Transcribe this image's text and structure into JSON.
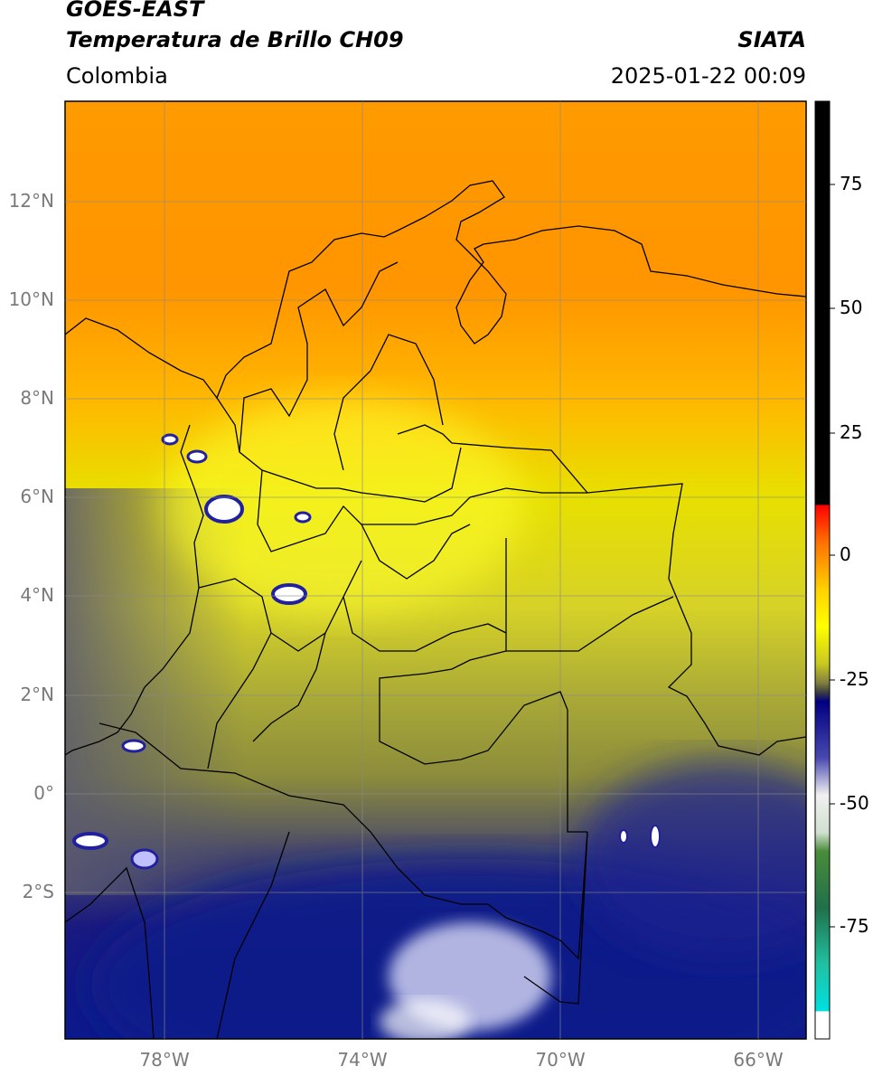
{
  "header": {
    "title_line1": "GOES-EAST",
    "title_line2": "Temperatura de Brillo CH09",
    "brand": "SIATA",
    "region": "Colombia",
    "timestamp": "2025-01-22 00:09"
  },
  "map": {
    "lat_ticks": [
      "12°N",
      "10°N",
      "8°N",
      "6°N",
      "4°N",
      "2°N",
      "0°",
      "2°S"
    ],
    "lon_ticks": [
      "78°W",
      "74°W",
      "70°W",
      "66°W"
    ],
    "lon_range": [
      -80,
      -65
    ],
    "lat_range": [
      -5,
      14
    ]
  },
  "colorbar": {
    "ticks": [
      "75",
      "50",
      "25",
      "0",
      "-25",
      "-50",
      "-75"
    ],
    "units": "",
    "range": [
      -97,
      90
    ]
  }
}
